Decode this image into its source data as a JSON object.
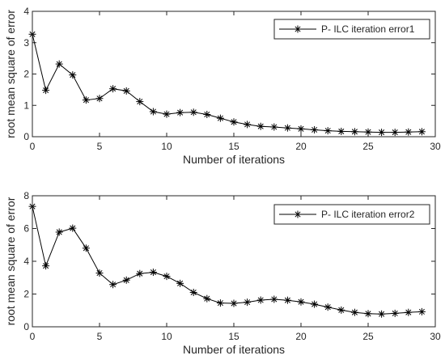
{
  "chart_data": [
    {
      "type": "line",
      "xlabel": "Number of iterations",
      "ylabel": "root mean square of error",
      "xlim": [
        0,
        30
      ],
      "ylim": [
        0,
        4
      ],
      "xticks": [
        "0",
        "5",
        "10",
        "15",
        "20",
        "25",
        "30"
      ],
      "yticks": [
        "0",
        "1",
        "2",
        "3",
        "4"
      ],
      "legend_position": "top-right",
      "series": [
        {
          "name": "P- ILC iteration error1",
          "color": "#000000",
          "marker": "asterisk",
          "x": [
            0,
            1,
            2,
            3,
            4,
            5,
            6,
            7,
            8,
            9,
            10,
            11,
            12,
            13,
            14,
            15,
            16,
            17,
            18,
            19,
            20,
            21,
            22,
            23,
            24,
            25,
            26,
            27,
            28,
            29
          ],
          "y": [
            3.27,
            1.48,
            2.32,
            1.97,
            1.17,
            1.22,
            1.53,
            1.46,
            1.12,
            0.8,
            0.72,
            0.77,
            0.78,
            0.71,
            0.59,
            0.47,
            0.39,
            0.33,
            0.31,
            0.28,
            0.25,
            0.22,
            0.19,
            0.17,
            0.16,
            0.15,
            0.14,
            0.14,
            0.15,
            0.16
          ]
        }
      ]
    },
    {
      "type": "line",
      "xlabel": "Number of iterations",
      "ylabel": "root mean square of error",
      "xlim": [
        0,
        30
      ],
      "ylim": [
        0,
        8
      ],
      "xticks": [
        "0",
        "5",
        "10",
        "15",
        "20",
        "25",
        "30"
      ],
      "yticks": [
        "0",
        "2",
        "4",
        "6",
        "8"
      ],
      "legend_position": "top-right",
      "series": [
        {
          "name": "P- ILC iteration error2",
          "color": "#000000",
          "marker": "asterisk",
          "x": [
            0,
            1,
            2,
            3,
            4,
            5,
            6,
            7,
            8,
            9,
            10,
            11,
            12,
            13,
            14,
            15,
            16,
            17,
            18,
            19,
            20,
            21,
            22,
            23,
            24,
            25,
            26,
            27,
            28,
            29
          ],
          "y": [
            7.35,
            3.72,
            5.78,
            6.02,
            4.8,
            3.28,
            2.58,
            2.85,
            3.25,
            3.33,
            3.08,
            2.65,
            2.1,
            1.72,
            1.45,
            1.43,
            1.5,
            1.63,
            1.68,
            1.62,
            1.52,
            1.38,
            1.2,
            1.02,
            0.88,
            0.8,
            0.78,
            0.82,
            0.88,
            0.92
          ]
        }
      ]
    }
  ]
}
